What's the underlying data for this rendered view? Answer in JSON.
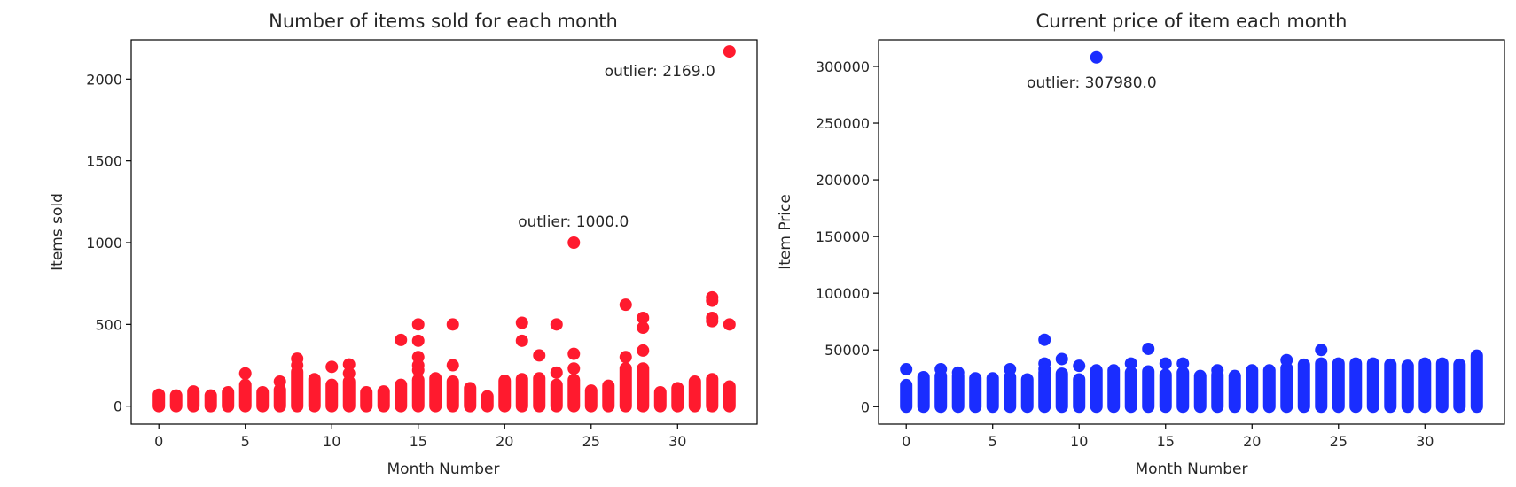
{
  "chart_data": [
    {
      "type": "scatter",
      "title": "Number of items sold for each month",
      "xlabel": "Month Number",
      "ylabel": "Items sold",
      "xlim": [
        -1.6,
        34.6
      ],
      "ylim": [
        -110,
        2240
      ],
      "xticks": [
        0,
        5,
        10,
        15,
        20,
        25,
        30
      ],
      "yticks": [
        0,
        500,
        1000,
        1500,
        2000
      ],
      "grid": false,
      "color": "#ff1a2e",
      "series": [
        {
          "columns": [
            {
              "x": 0,
              "max": 70
            },
            {
              "x": 1,
              "max": 65
            },
            {
              "x": 2,
              "max": 90
            },
            {
              "x": 3,
              "max": 65
            },
            {
              "x": 4,
              "max": 85
            },
            {
              "x": 5,
              "max": 130
            },
            {
              "x": 6,
              "max": 85
            },
            {
              "x": 7,
              "max": 100
            },
            {
              "x": 8,
              "max": 210
            },
            {
              "x": 9,
              "max": 165
            },
            {
              "x": 10,
              "max": 130
            },
            {
              "x": 11,
              "max": 150
            },
            {
              "x": 12,
              "max": 85
            },
            {
              "x": 13,
              "max": 90
            },
            {
              "x": 14,
              "max": 130
            },
            {
              "x": 15,
              "max": 160
            },
            {
              "x": 16,
              "max": 170
            },
            {
              "x": 17,
              "max": 150
            },
            {
              "x": 18,
              "max": 110
            },
            {
              "x": 19,
              "max": 60
            },
            {
              "x": 20,
              "max": 155
            },
            {
              "x": 21,
              "max": 165
            },
            {
              "x": 22,
              "max": 170
            },
            {
              "x": 23,
              "max": 130
            },
            {
              "x": 24,
              "max": 160
            },
            {
              "x": 25,
              "max": 95
            },
            {
              "x": 26,
              "max": 125
            },
            {
              "x": 27,
              "max": 230
            },
            {
              "x": 28,
              "max": 230
            },
            {
              "x": 29,
              "max": 85
            },
            {
              "x": 30,
              "max": 110
            },
            {
              "x": 31,
              "max": 150
            },
            {
              "x": 32,
              "max": 165
            },
            {
              "x": 33,
              "max": 120
            }
          ],
          "points": [
            {
              "x": 5,
              "y": 200
            },
            {
              "x": 7,
              "y": 150
            },
            {
              "x": 8,
              "y": 290
            },
            {
              "x": 8,
              "y": 250
            },
            {
              "x": 10,
              "y": 240
            },
            {
              "x": 11,
              "y": 255
            },
            {
              "x": 11,
              "y": 200
            },
            {
              "x": 14,
              "y": 405
            },
            {
              "x": 15,
              "y": 500
            },
            {
              "x": 15,
              "y": 400
            },
            {
              "x": 15,
              "y": 300
            },
            {
              "x": 15,
              "y": 250
            },
            {
              "x": 15,
              "y": 220
            },
            {
              "x": 17,
              "y": 500
            },
            {
              "x": 17,
              "y": 250
            },
            {
              "x": 21,
              "y": 510
            },
            {
              "x": 21,
              "y": 400
            },
            {
              "x": 22,
              "y": 310
            },
            {
              "x": 23,
              "y": 500
            },
            {
              "x": 23,
              "y": 205
            },
            {
              "x": 24,
              "y": 1000
            },
            {
              "x": 24,
              "y": 320
            },
            {
              "x": 24,
              "y": 230
            },
            {
              "x": 27,
              "y": 620
            },
            {
              "x": 27,
              "y": 300
            },
            {
              "x": 28,
              "y": 540
            },
            {
              "x": 28,
              "y": 480
            },
            {
              "x": 28,
              "y": 340
            },
            {
              "x": 32,
              "y": 665
            },
            {
              "x": 32,
              "y": 645
            },
            {
              "x": 32,
              "y": 540
            },
            {
              "x": 32,
              "y": 520
            },
            {
              "x": 33,
              "y": 2169
            },
            {
              "x": 33,
              "y": 500
            }
          ]
        }
      ],
      "annotations": [
        {
          "text": "outlier: 1000.0",
          "x": 24,
          "y": 1000
        },
        {
          "text": "outlier: 2169.0",
          "x": 33,
          "y": 2169
        }
      ]
    },
    {
      "type": "scatter",
      "title": "Current price of item each month",
      "xlabel": "Month Number",
      "ylabel": "Item Price",
      "xlim": [
        -1.6,
        34.6
      ],
      "ylim": [
        -15400,
        323400
      ],
      "xticks": [
        0,
        5,
        10,
        15,
        20,
        25,
        30
      ],
      "yticks": [
        0,
        50000,
        100000,
        150000,
        200000,
        250000,
        300000
      ],
      "grid": false,
      "color": "#1a2dff",
      "series": [
        {
          "columns": [
            {
              "x": 0,
              "max": 19000
            },
            {
              "x": 1,
              "max": 26000
            },
            {
              "x": 2,
              "max": 27000
            },
            {
              "x": 3,
              "max": 27000
            },
            {
              "x": 4,
              "max": 25000
            },
            {
              "x": 5,
              "max": 25000
            },
            {
              "x": 6,
              "max": 26000
            },
            {
              "x": 7,
              "max": 24000
            },
            {
              "x": 8,
              "max": 30000
            },
            {
              "x": 9,
              "max": 29000
            },
            {
              "x": 10,
              "max": 24000
            },
            {
              "x": 11,
              "max": 32000
            },
            {
              "x": 12,
              "max": 32000
            },
            {
              "x": 13,
              "max": 30000
            },
            {
              "x": 14,
              "max": 31000
            },
            {
              "x": 15,
              "max": 28000
            },
            {
              "x": 16,
              "max": 30000
            },
            {
              "x": 17,
              "max": 27000
            },
            {
              "x": 18,
              "max": 28000
            },
            {
              "x": 19,
              "max": 27000
            },
            {
              "x": 20,
              "max": 32000
            },
            {
              "x": 21,
              "max": 32000
            },
            {
              "x": 22,
              "max": 34000
            },
            {
              "x": 23,
              "max": 37000
            },
            {
              "x": 24,
              "max": 38000
            },
            {
              "x": 25,
              "max": 38000
            },
            {
              "x": 26,
              "max": 38000
            },
            {
              "x": 27,
              "max": 38000
            },
            {
              "x": 28,
              "max": 37000
            },
            {
              "x": 29,
              "max": 36000
            },
            {
              "x": 30,
              "max": 38000
            },
            {
              "x": 31,
              "max": 38000
            },
            {
              "x": 32,
              "max": 37000
            },
            {
              "x": 33,
              "max": 45000
            }
          ],
          "points": [
            {
              "x": 0,
              "y": 33000
            },
            {
              "x": 2,
              "y": 33000
            },
            {
              "x": 3,
              "y": 30000
            },
            {
              "x": 6,
              "y": 33000
            },
            {
              "x": 8,
              "y": 59000
            },
            {
              "x": 8,
              "y": 38000
            },
            {
              "x": 8,
              "y": 33000
            },
            {
              "x": 9,
              "y": 42000
            },
            {
              "x": 10,
              "y": 36000
            },
            {
              "x": 11,
              "y": 307980
            },
            {
              "x": 13,
              "y": 38000
            },
            {
              "x": 14,
              "y": 51000
            },
            {
              "x": 15,
              "y": 38000
            },
            {
              "x": 16,
              "y": 38000
            },
            {
              "x": 18,
              "y": 32000
            },
            {
              "x": 22,
              "y": 41000
            },
            {
              "x": 24,
              "y": 50000
            }
          ]
        }
      ],
      "annotations": [
        {
          "text": "outlier: 307980.0",
          "x": 11,
          "y": 307980
        }
      ]
    }
  ]
}
